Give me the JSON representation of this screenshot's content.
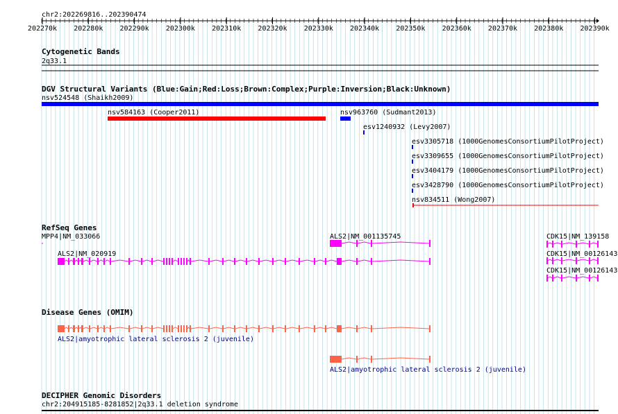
{
  "ruler": {
    "region": "chr2:202269816..202390474",
    "ticks": [
      "202270k",
      "202280k",
      "202290k",
      "202300k",
      "202310k",
      "202320k",
      "202330k",
      "202340k",
      "202350k",
      "202360k",
      "202370k",
      "202380k",
      "202390k"
    ]
  },
  "tracks": {
    "cytoband": {
      "title": "Cytogenetic Bands",
      "band": "2q33.1"
    },
    "dgv": {
      "title": "DGV Structural Variants (Blue:Gain;Red:Loss;Brown:Complex;Purple:Inversion;Black:Unknown)",
      "features": [
        {
          "label": "nsv524548 (Shaikh2009)",
          "color": "#0000ff",
          "kind": "gain"
        },
        {
          "label": "nsv584163 (Cooper2011)",
          "color": "#ff0000",
          "kind": "loss"
        },
        {
          "label": "nsv963760 (Sudmant2013)",
          "color": "#0000ff",
          "kind": "gain"
        },
        {
          "label": "esv1240932 (Levy2007)",
          "color": "#0000ff",
          "kind": "gain"
        },
        {
          "label": "esv3305718 (1000GenomesConsortiumPilotProject)",
          "color": "#0000ff",
          "kind": "gain"
        },
        {
          "label": "esv3309655 (1000GenomesConsortiumPilotProject)",
          "color": "#0000ff",
          "kind": "gain"
        },
        {
          "label": "esv3404179 (1000GenomesConsortiumPilotProject)",
          "color": "#0000ff",
          "kind": "gain"
        },
        {
          "label": "esv3428790 (1000GenomesConsortiumPilotProject)",
          "color": "#0000ff",
          "kind": "gain"
        },
        {
          "label": "nsv834511 (Wong2007)",
          "color": "#ff0000",
          "kind": "loss"
        }
      ]
    },
    "refseq": {
      "title": "RefSeq Genes",
      "color": "#ff00ff",
      "genes": [
        {
          "label": "MPP4|NM_033066"
        },
        {
          "label": "ALS2|NM_001135745"
        },
        {
          "label": "CDK15|NM_139158"
        },
        {
          "label": "ALS2|NM_020919"
        },
        {
          "label": "CDK15|NM_00126143"
        },
        {
          "label": "CDK15|NM_00126143"
        }
      ]
    },
    "omim": {
      "title": "Disease Genes (OMIM)",
      "color": "#ff6347",
      "label_color": "#00008b",
      "genes": [
        {
          "label": "ALS2|amyotrophic lateral sclerosis 2 (juvenile)"
        },
        {
          "label": "ALS2|amyotrophic lateral sclerosis 2 (juvenile)"
        }
      ]
    },
    "decipher": {
      "title": "DECIPHER Genomic Disorders",
      "entry": "chr2:204915185-8281852|2q33.1 deletion syndrome"
    }
  },
  "colors": {
    "grid": "#add8e6",
    "ruler": "#000000"
  }
}
